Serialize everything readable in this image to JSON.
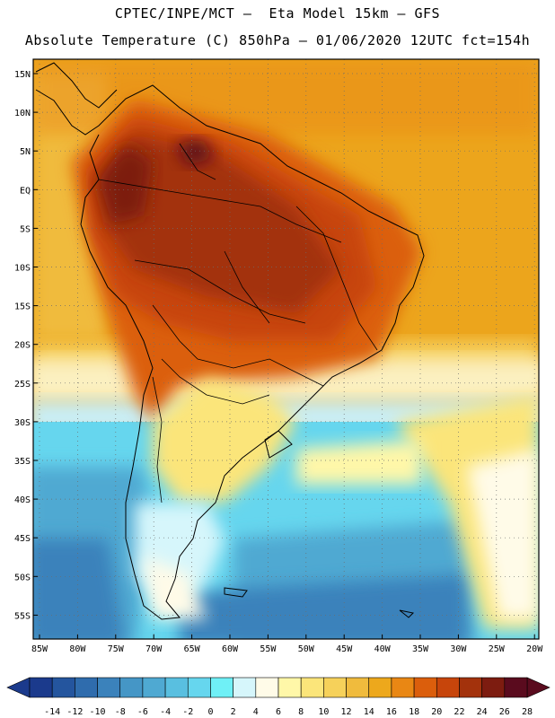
{
  "header": {
    "line1": "CPTEC/INPE/MCT –  Eta Model 15km – GFS",
    "line2": "Absolute Temperature (C) 850hPa – 01/06/2020 12UTC fct=154h"
  },
  "axes": {
    "lat_labels": [
      "15N",
      "10N",
      "5N",
      "EQ",
      "5S",
      "10S",
      "15S",
      "20S",
      "25S",
      "30S",
      "35S",
      "40S",
      "45S",
      "50S",
      "55S"
    ],
    "lon_labels": [
      "85W",
      "80W",
      "75W",
      "70W",
      "65W",
      "60W",
      "55W",
      "50W",
      "45W",
      "40W",
      "35W",
      "30W",
      "25W",
      "20W"
    ]
  },
  "colorbar": {
    "labels": [
      "-14",
      "-12",
      "-10",
      "-8",
      "-6",
      "-4",
      "-2",
      "0",
      "2",
      "4",
      "6",
      "8",
      "10",
      "12",
      "14",
      "16",
      "18",
      "20",
      "22",
      "24",
      "26",
      "28"
    ],
    "colors": [
      "#1b3a8c",
      "#24559e",
      "#2f6cad",
      "#3b82bb",
      "#4596c6",
      "#4fa9d2",
      "#59bfe0",
      "#66d6ee",
      "#6ff0f6",
      "#d6f6fb",
      "#fffbe8",
      "#fff7a8",
      "#fbe57a",
      "#f6d15a",
      "#f0bb3d",
      "#eda81c",
      "#e98714",
      "#db5e0c",
      "#c7450b",
      "#a3320c",
      "#7d1c10",
      "#5a0b1e"
    ]
  }
}
